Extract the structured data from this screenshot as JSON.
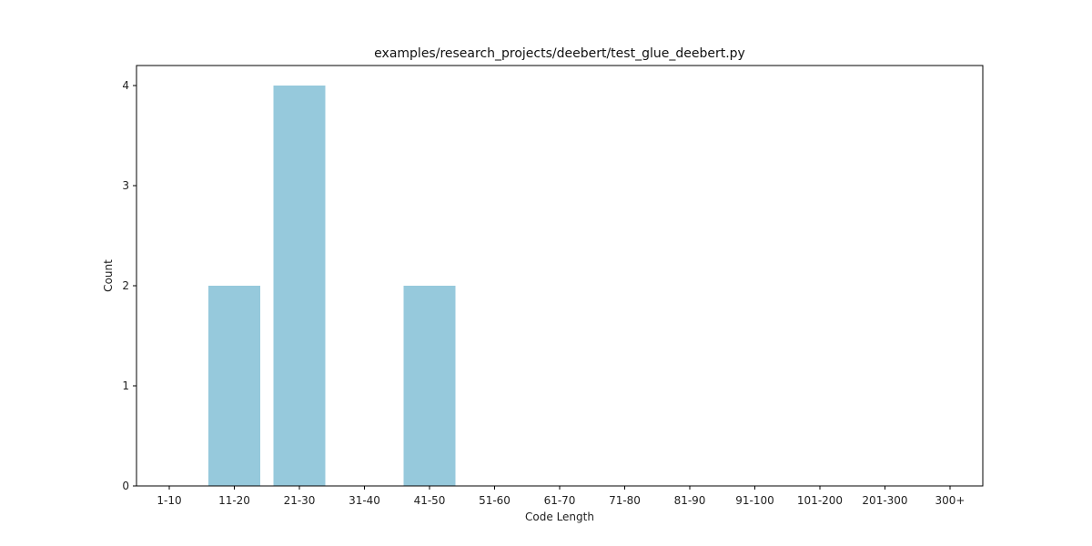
{
  "chart_data": {
    "type": "bar",
    "title": "examples/research_projects/deebert/test_glue_deebert.py",
    "xlabel": "Code Length",
    "ylabel": "Count",
    "categories": [
      "1-10",
      "11-20",
      "21-30",
      "31-40",
      "41-50",
      "51-60",
      "61-70",
      "71-80",
      "81-90",
      "91-100",
      "101-200",
      "201-300",
      "300+"
    ],
    "values": [
      0,
      2,
      4,
      0,
      2,
      0,
      0,
      0,
      0,
      0,
      0,
      0,
      0
    ],
    "ylim": [
      0,
      4.2
    ],
    "yticks": [
      "0",
      "1",
      "2",
      "3",
      "4"
    ],
    "bar_color": "#96c9dc",
    "grid": false,
    "legend": "none"
  }
}
